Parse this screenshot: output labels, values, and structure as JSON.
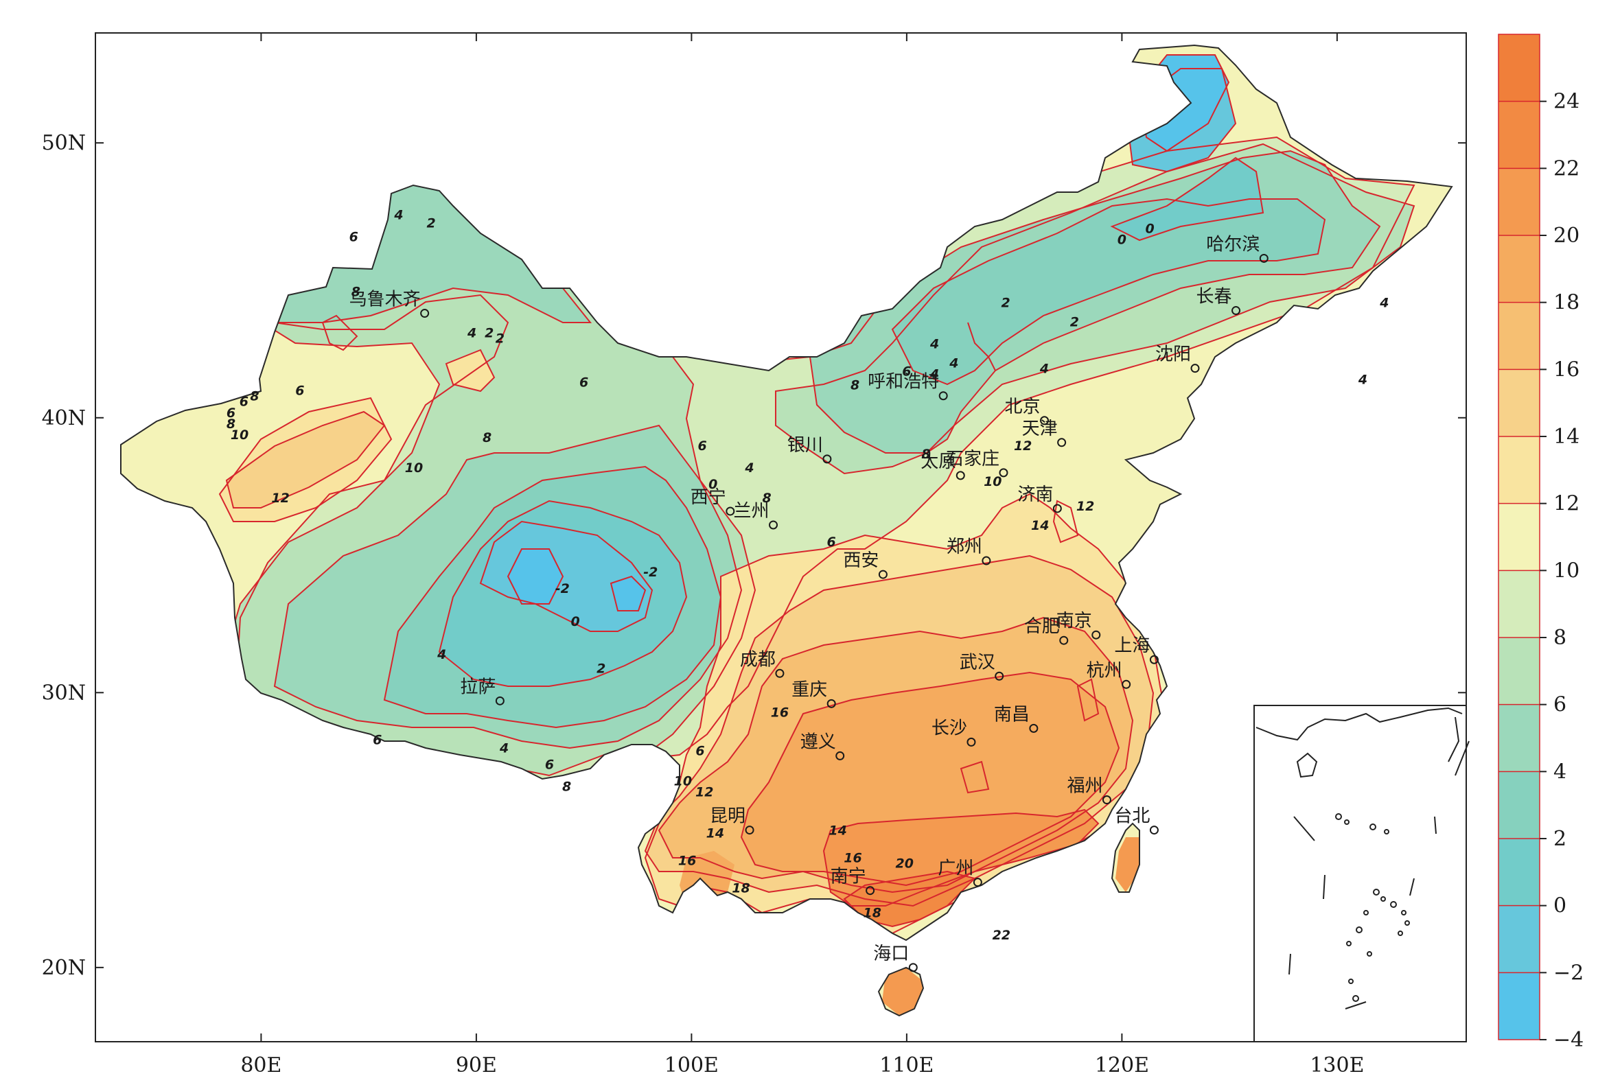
{
  "map": {
    "lon_labels": [
      "80E",
      "90E",
      "100E",
      "110E",
      "120E",
      "130E"
    ],
    "lat_labels": [
      "20N",
      "30N",
      "40N",
      "50N"
    ],
    "lon_values": [
      80,
      90,
      100,
      110,
      120,
      130
    ],
    "lat_values": [
      20,
      30,
      40,
      50
    ],
    "lon_range": [
      72.3,
      136
    ],
    "lat_range": [
      17.3,
      54
    ]
  },
  "colorbar": {
    "labels": [
      "24",
      "22",
      "20",
      "18",
      "16",
      "14",
      "12",
      "10",
      "8",
      "6",
      "4",
      "2",
      "0",
      "−2",
      "−4"
    ],
    "levels": [
      -4,
      -2,
      0,
      2,
      4,
      6,
      8,
      10,
      12,
      14,
      16,
      18,
      20,
      22,
      24,
      26
    ],
    "colors": [
      "#56c3ea",
      "#66c7dc",
      "#72ccc9",
      "#86d1be",
      "#9bd8bb",
      "#b8e2b8",
      "#d5ecbb",
      "#f4f3b8",
      "#f9e4a0",
      "#f7d28a",
      "#f6bf72",
      "#f5ab5e",
      "#f49a50",
      "#f28a43",
      "#f07f3a"
    ]
  },
  "cities": [
    {
      "name": "乌鲁木齐",
      "lon": 87.6,
      "lat": 43.8
    },
    {
      "name": "哈尔滨",
      "lon": 126.6,
      "lat": 45.8
    },
    {
      "name": "长春",
      "lon": 125.3,
      "lat": 43.9
    },
    {
      "name": "沈阳",
      "lon": 123.4,
      "lat": 41.8
    },
    {
      "name": "呼和浩特",
      "lon": 111.7,
      "lat": 40.8
    },
    {
      "name": "北京",
      "lon": 116.4,
      "lat": 39.9
    },
    {
      "name": "天津",
      "lon": 117.2,
      "lat": 39.1
    },
    {
      "name": "石家庄",
      "lon": 114.5,
      "lat": 38.0
    },
    {
      "name": "太原",
      "lon": 112.5,
      "lat": 37.9
    },
    {
      "name": "银川",
      "lon": 106.3,
      "lat": 38.5
    },
    {
      "name": "西宁",
      "lon": 101.8,
      "lat": 36.6
    },
    {
      "name": "兰州",
      "lon": 103.8,
      "lat": 36.1
    },
    {
      "name": "济南",
      "lon": 117.0,
      "lat": 36.7
    },
    {
      "name": "郑州",
      "lon": 113.7,
      "lat": 34.8
    },
    {
      "name": "西安",
      "lon": 108.9,
      "lat": 34.3
    },
    {
      "name": "南京",
      "lon": 118.8,
      "lat": 32.1
    },
    {
      "name": "合肥",
      "lon": 117.3,
      "lat": 31.9
    },
    {
      "name": "上海",
      "lon": 121.5,
      "lat": 31.2
    },
    {
      "name": "成都",
      "lon": 104.1,
      "lat": 30.7
    },
    {
      "name": "重庆",
      "lon": 106.5,
      "lat": 29.6
    },
    {
      "name": "武汉",
      "lon": 114.3,
      "lat": 30.6
    },
    {
      "name": "杭州",
      "lon": 120.2,
      "lat": 30.3
    },
    {
      "name": "拉萨",
      "lon": 91.1,
      "lat": 29.7
    },
    {
      "name": "长沙",
      "lon": 113.0,
      "lat": 28.2
    },
    {
      "name": "南昌",
      "lon": 115.9,
      "lat": 28.7
    },
    {
      "name": "遵义",
      "lon": 106.9,
      "lat": 27.7
    },
    {
      "name": "福州",
      "lon": 119.3,
      "lat": 26.1
    },
    {
      "name": "昆明",
      "lon": 102.7,
      "lat": 25.0
    },
    {
      "name": "台北",
      "lon": 121.5,
      "lat": 25.0
    },
    {
      "name": "南宁",
      "lon": 108.3,
      "lat": 22.8
    },
    {
      "name": "广州",
      "lon": 113.3,
      "lat": 23.1
    },
    {
      "name": "海口",
      "lon": 110.3,
      "lat": 20.0
    }
  ],
  "contour_labels": [
    {
      "text": "4",
      "lon": 86.4,
      "lat": 47.4
    },
    {
      "text": "2",
      "lon": 87.9,
      "lat": 47.1
    },
    {
      "text": "6",
      "lon": 84.3,
      "lat": 46.6
    },
    {
      "text": "8",
      "lon": 84.4,
      "lat": 44.6
    },
    {
      "text": "4",
      "lon": 89.8,
      "lat": 43.1
    },
    {
      "text": "2",
      "lon": 90.6,
      "lat": 43.1
    },
    {
      "text": "2",
      "lon": 91.1,
      "lat": 42.9
    },
    {
      "text": "6",
      "lon": 95.0,
      "lat": 41.3
    },
    {
      "text": "6",
      "lon": 81.8,
      "lat": 41.0
    },
    {
      "text": "8",
      "lon": 79.7,
      "lat": 40.8
    },
    {
      "text": "6",
      "lon": 79.2,
      "lat": 40.6
    },
    {
      "text": "6",
      "lon": 78.6,
      "lat": 40.2
    },
    {
      "text": "8",
      "lon": 78.6,
      "lat": 39.8
    },
    {
      "text": "10",
      "lon": 79.0,
      "lat": 39.4
    },
    {
      "text": "8",
      "lon": 90.5,
      "lat": 39.3
    },
    {
      "text": "10",
      "lon": 87.1,
      "lat": 38.2
    },
    {
      "text": "12",
      "lon": 80.9,
      "lat": 37.1
    },
    {
      "text": "8",
      "lon": 107.6,
      "lat": 41.2
    },
    {
      "text": "6",
      "lon": 110.0,
      "lat": 41.7
    },
    {
      "text": "4",
      "lon": 111.3,
      "lat": 41.6
    },
    {
      "text": "4",
      "lon": 111.3,
      "lat": 42.7
    },
    {
      "text": "4",
      "lon": 112.2,
      "lat": 42.0
    },
    {
      "text": "4",
      "lon": 116.4,
      "lat": 41.8
    },
    {
      "text": "2",
      "lon": 114.6,
      "lat": 44.2
    },
    {
      "text": "2",
      "lon": 117.8,
      "lat": 43.5
    },
    {
      "text": "0",
      "lon": 120.0,
      "lat": 46.5
    },
    {
      "text": "0",
      "lon": 121.3,
      "lat": 46.9
    },
    {
      "text": "4",
      "lon": 132.2,
      "lat": 44.2
    },
    {
      "text": "4",
      "lon": 131.2,
      "lat": 41.4
    },
    {
      "text": "8",
      "lon": 110.9,
      "lat": 38.7
    },
    {
      "text": "12",
      "lon": 115.4,
      "lat": 39.0
    },
    {
      "text": "10",
      "lon": 114.0,
      "lat": 37.7
    },
    {
      "text": "14",
      "lon": 116.2,
      "lat": 36.1
    },
    {
      "text": "12",
      "lon": 118.3,
      "lat": 36.8
    },
    {
      "text": "6",
      "lon": 100.5,
      "lat": 39.0
    },
    {
      "text": "0",
      "lon": 101.0,
      "lat": 37.6
    },
    {
      "text": "4",
      "lon": 102.7,
      "lat": 38.2
    },
    {
      "text": "8",
      "lon": 103.5,
      "lat": 37.1
    },
    {
      "text": "6",
      "lon": 106.5,
      "lat": 35.5
    },
    {
      "text": "-2",
      "lon": 94.0,
      "lat": 33.8
    },
    {
      "text": "-2",
      "lon": 98.1,
      "lat": 34.4
    },
    {
      "text": "0",
      "lon": 94.6,
      "lat": 32.6
    },
    {
      "text": "2",
      "lon": 95.8,
      "lat": 30.9
    },
    {
      "text": "4",
      "lon": 88.4,
      "lat": 31.4
    },
    {
      "text": "6",
      "lon": 85.4,
      "lat": 28.3
    },
    {
      "text": "4",
      "lon": 91.3,
      "lat": 28.0
    },
    {
      "text": "6",
      "lon": 93.4,
      "lat": 27.4
    },
    {
      "text": "8",
      "lon": 94.2,
      "lat": 26.6
    },
    {
      "text": "6",
      "lon": 100.4,
      "lat": 27.9
    },
    {
      "text": "10",
      "lon": 99.6,
      "lat": 26.8
    },
    {
      "text": "12",
      "lon": 100.6,
      "lat": 26.4
    },
    {
      "text": "14",
      "lon": 101.1,
      "lat": 24.9
    },
    {
      "text": "14",
      "lon": 106.8,
      "lat": 25.0
    },
    {
      "text": "16",
      "lon": 99.8,
      "lat": 23.9
    },
    {
      "text": "16",
      "lon": 107.5,
      "lat": 24.0
    },
    {
      "text": "16",
      "lon": 104.1,
      "lat": 29.3
    },
    {
      "text": "18",
      "lon": 102.3,
      "lat": 22.9
    },
    {
      "text": "18",
      "lon": 108.4,
      "lat": 22.0
    },
    {
      "text": "20",
      "lon": 109.9,
      "lat": 23.8
    },
    {
      "text": "22",
      "lon": 114.4,
      "lat": 21.2
    }
  ]
}
